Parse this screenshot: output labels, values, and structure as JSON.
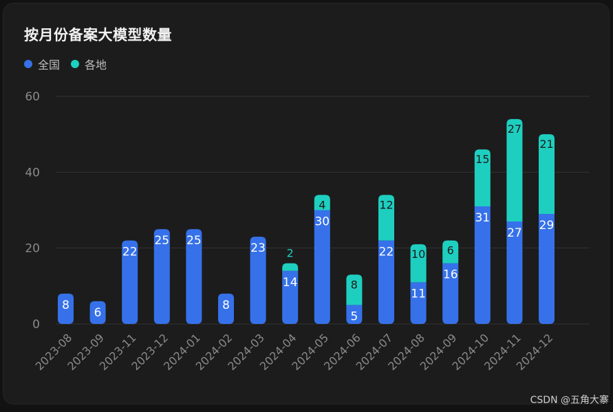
{
  "watermark": "CSDN @五角大寨",
  "colors": {
    "series_national": "#3671EA",
    "series_local": "#1ECFC0",
    "grid": "#333333",
    "tick_text": "#8a8a8a",
    "label_on_blue": "#ffffff",
    "label_on_teal": "#1a1a1a"
  },
  "chart_data": {
    "type": "bar",
    "stacked": true,
    "title": "按月份备案大模型数量",
    "categories": [
      "2023-08",
      "2023-09",
      "2023-11",
      "2023-12",
      "2024-01",
      "2024-02",
      "2024-03",
      "2024-04",
      "2024-05",
      "2024-06",
      "2024-07",
      "2024-08",
      "2024-09",
      "2024-10",
      "2024-11",
      "2024-12"
    ],
    "series": [
      {
        "name": "全国",
        "color": "#3671EA",
        "values": [
          8,
          6,
          22,
          25,
          25,
          8,
          23,
          14,
          30,
          5,
          22,
          11,
          16,
          31,
          27,
          29
        ]
      },
      {
        "name": "各地",
        "color": "#1ECFC0",
        "values": [
          0,
          0,
          0,
          0,
          0,
          0,
          0,
          2,
          4,
          8,
          12,
          10,
          6,
          15,
          27,
          21
        ]
      }
    ],
    "y_ticks": [
      0,
      20,
      40,
      60
    ],
    "ylim": [
      0,
      60
    ],
    "grid": true,
    "legend_position": "top-left"
  }
}
